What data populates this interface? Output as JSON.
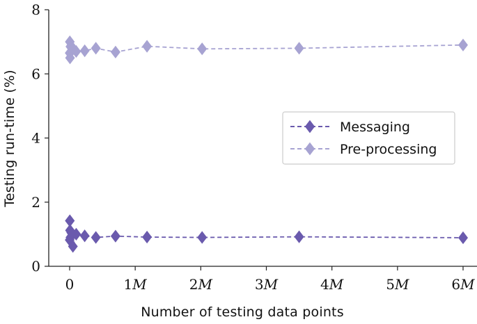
{
  "chart_data": {
    "type": "line",
    "title": "",
    "xlabel": "Number of testing data points",
    "ylabel": "Testing run-time (%)",
    "xlim": [
      -200000,
      6150000
    ],
    "ylim": [
      0,
      8
    ],
    "grid": false,
    "legend_position": "center-right",
    "x_ticks": [
      {
        "value": 0,
        "label": "0"
      },
      {
        "value": 1000000,
        "label": "1M"
      },
      {
        "value": 2000000,
        "label": "2M"
      },
      {
        "value": 3000000,
        "label": "3M"
      },
      {
        "value": 4000000,
        "label": "4M"
      },
      {
        "value": 5000000,
        "label": "5M"
      },
      {
        "value": 6000000,
        "label": "6M"
      }
    ],
    "y_ticks": [
      {
        "value": 0,
        "label": "0"
      },
      {
        "value": 2,
        "label": "2"
      },
      {
        "value": 4,
        "label": "4"
      },
      {
        "value": 6,
        "label": "6"
      },
      {
        "value": 8,
        "label": "8"
      }
    ],
    "series": [
      {
        "name": "Messaging",
        "color": "#6a5aad",
        "marker": "diamond",
        "line_style": "dashed",
        "points": [
          {
            "x": 1000,
            "y": 0.82
          },
          {
            "x": 3000,
            "y": 1.42
          },
          {
            "x": 6000,
            "y": 1.12
          },
          {
            "x": 12000,
            "y": 0.9
          },
          {
            "x": 25000,
            "y": 1.05
          },
          {
            "x": 50000,
            "y": 0.62
          },
          {
            "x": 100000,
            "y": 1.0
          },
          {
            "x": 230000,
            "y": 0.95
          },
          {
            "x": 400000,
            "y": 0.9
          },
          {
            "x": 700000,
            "y": 0.94
          },
          {
            "x": 1180000,
            "y": 0.91
          },
          {
            "x": 2020000,
            "y": 0.9
          },
          {
            "x": 3500000,
            "y": 0.92
          },
          {
            "x": 6000000,
            "y": 0.89
          }
        ]
      },
      {
        "name": "Pre-processing",
        "color": "#a7a3d2",
        "marker": "diamond",
        "line_style": "dashed",
        "points": [
          {
            "x": 1000,
            "y": 6.65
          },
          {
            "x": 3000,
            "y": 7.0
          },
          {
            "x": 6000,
            "y": 6.5
          },
          {
            "x": 12000,
            "y": 6.85
          },
          {
            "x": 25000,
            "y": 6.7
          },
          {
            "x": 50000,
            "y": 6.8
          },
          {
            "x": 100000,
            "y": 6.7
          },
          {
            "x": 230000,
            "y": 6.72
          },
          {
            "x": 400000,
            "y": 6.8
          },
          {
            "x": 700000,
            "y": 6.68
          },
          {
            "x": 1180000,
            "y": 6.86
          },
          {
            "x": 2020000,
            "y": 6.78
          },
          {
            "x": 3500000,
            "y": 6.8
          },
          {
            "x": 6000000,
            "y": 6.9
          }
        ]
      }
    ]
  },
  "axis_color": "#222222",
  "legend_border_color": "#cccccc"
}
